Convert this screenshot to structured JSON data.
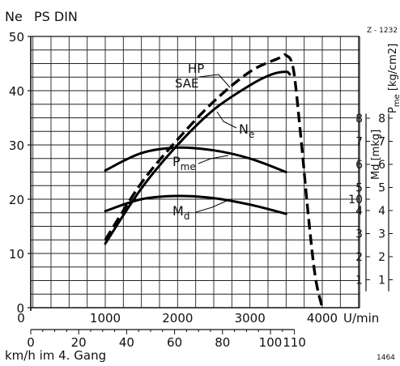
{
  "header": {
    "ylabel_symbol": "Ne",
    "ylabel_unit": "PS DIN",
    "ref_code": "Z - 1232",
    "plate_no": "1464"
  },
  "chart_data": {
    "type": "line",
    "x": {
      "label": "U/min",
      "min": 0,
      "max": 4500,
      "ticks": [
        0,
        1000,
        2000,
        3000,
        4000
      ]
    },
    "y": {
      "min": 0,
      "max": 50,
      "ticks": [
        0,
        10,
        20,
        30,
        40,
        50
      ]
    },
    "speed_axis": {
      "label": "km/h im 4. Gang",
      "ticks": [
        0,
        20,
        40,
        60,
        80,
        100,
        110
      ],
      "labels": [
        "0",
        "20",
        "40",
        "60",
        "80",
        "100",
        "110"
      ]
    },
    "md_axis": {
      "label": "Md",
      "unit": "mkg",
      "ticks": [
        1,
        2,
        3,
        4,
        5,
        6,
        7,
        8
      ],
      "labels": [
        "1",
        "2",
        "3",
        "4",
        "5",
        "6",
        "7",
        "8"
      ],
      "top_label": "10"
    },
    "pme_axis": {
      "label": "Pme",
      "unit": "kg/cm2",
      "ticks": [
        1,
        2,
        3,
        4,
        5,
        6,
        7,
        8
      ],
      "labels": [
        "1",
        "2",
        "3",
        "4",
        "5",
        "6",
        "7",
        "8"
      ]
    },
    "series": [
      {
        "name": "HP SAE",
        "label_lines": [
          "HP",
          "SAE"
        ],
        "style": "dashed",
        "points": [
          [
            1000,
            12.5
          ],
          [
            1500,
            23
          ],
          [
            2000,
            31
          ],
          [
            2500,
            38
          ],
          [
            3000,
            43.5
          ],
          [
            3400,
            46
          ],
          [
            3500,
            46.5
          ],
          [
            3600,
            44
          ],
          [
            3700,
            32
          ],
          [
            3800,
            18
          ],
          [
            3900,
            6
          ],
          [
            4000,
            0
          ]
        ]
      },
      {
        "name": "Ne",
        "label_main": "N",
        "label_sub": "e",
        "style": "solid",
        "points": [
          [
            1000,
            11.8
          ],
          [
            1500,
            22
          ],
          [
            2000,
            30
          ],
          [
            2500,
            36.5
          ],
          [
            3000,
            41
          ],
          [
            3300,
            43
          ],
          [
            3500,
            43.5
          ],
          [
            3550,
            43
          ]
        ]
      },
      {
        "name": "Pme",
        "label_main": "P",
        "label_sub": "me",
        "style": "solid",
        "points": [
          [
            1000,
            25.3
          ],
          [
            1500,
            28.5
          ],
          [
            2000,
            29.5
          ],
          [
            2500,
            29
          ],
          [
            3000,
            27.5
          ],
          [
            3500,
            25
          ]
        ]
      },
      {
        "name": "Md",
        "label_main": "M",
        "label_sub": "d",
        "style": "solid",
        "points": [
          [
            1000,
            17.8
          ],
          [
            1500,
            20
          ],
          [
            2000,
            20.6
          ],
          [
            2500,
            20.2
          ],
          [
            3000,
            19
          ],
          [
            3500,
            17.3
          ]
        ]
      }
    ]
  }
}
